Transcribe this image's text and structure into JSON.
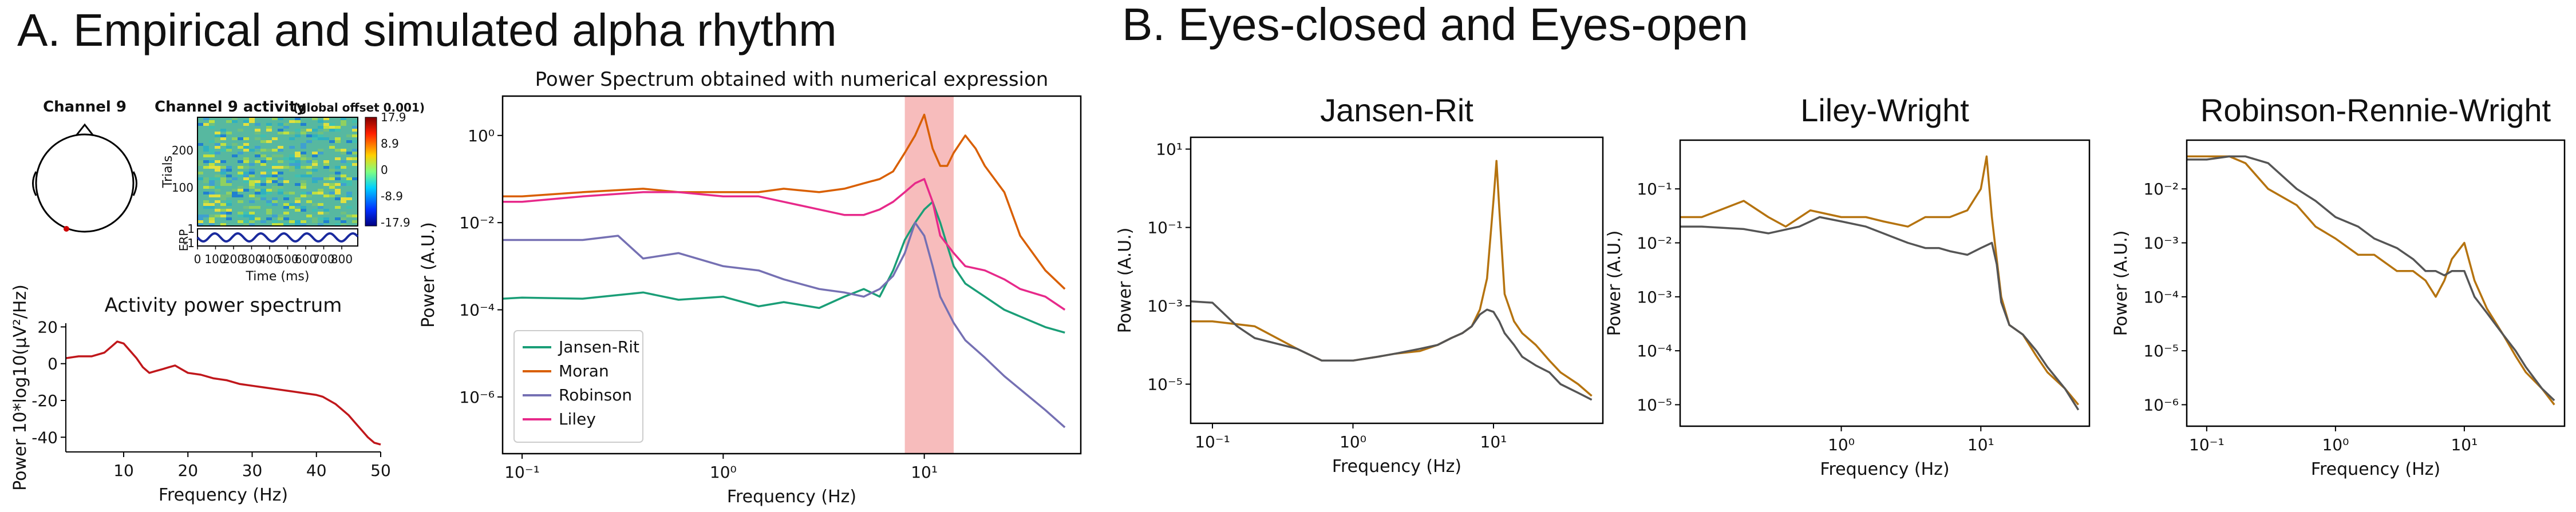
{
  "figure": {
    "panel_a_title": "A. Empirical and simulated alpha rhythm",
    "panel_b_title": "B. Eyes-closed and Eyes-open"
  },
  "eeglab": {
    "channel_title": "Channel 9",
    "activity_title": "Channel 9 activity",
    "activity_subtitle": "(global offset 0.001)",
    "trials_label": "Trials",
    "trial_ticks": [
      "200",
      "100"
    ],
    "erp_label": "ERP",
    "erp_ticks": [
      "1",
      "-1"
    ],
    "time_label": "Time (ms)",
    "time_ticks": [
      "0",
      "100",
      "200",
      "300",
      "400",
      "500",
      "600",
      "700",
      "800"
    ],
    "colorbar_ticks": [
      "17.9",
      "8.9",
      "0",
      "-8.9",
      "-17.9"
    ],
    "colors": {
      "head": "#000000",
      "electrode": "#cc0000",
      "erp_line": "#1a2a9e"
    }
  },
  "chart_data": [
    {
      "id": "activity-power-spectrum",
      "type": "line",
      "title": "Activity power spectrum",
      "xlabel": "Frequency (Hz)",
      "ylabel": "Power 10*log10(μV²/Hz)",
      "xlim": [
        1,
        50
      ],
      "ylim": [
        -48,
        22
      ],
      "xticks": [
        "10",
        "20",
        "30",
        "40",
        "50"
      ],
      "yticks": [
        "20",
        "0",
        "-20",
        "-40"
      ],
      "grid": false,
      "series": [
        {
          "color": "#c0171b",
          "x": [
            1,
            3,
            5,
            7,
            8,
            9,
            10,
            11,
            12,
            13,
            14,
            15,
            16,
            17,
            18,
            19,
            20,
            22,
            24,
            26,
            28,
            30,
            32,
            34,
            36,
            38,
            40,
            41,
            42,
            43,
            44,
            45,
            46,
            47,
            48,
            49,
            50
          ],
          "y": [
            3,
            4,
            4,
            6,
            9,
            12,
            11,
            7,
            3,
            -2,
            -5,
            -4,
            -3,
            -2,
            -1,
            -3,
            -5,
            -6,
            -8,
            -9,
            -11,
            -12,
            -13,
            -14,
            -15,
            -16,
            -17,
            -18,
            -20,
            -22,
            -25,
            -28,
            -32,
            -36,
            -40,
            -43,
            -44
          ]
        }
      ]
    },
    {
      "id": "power-spectrum-numerical",
      "type": "line",
      "title": "Power Spectrum obtained with numerical expression",
      "xlabel": "Frequency (Hz)",
      "ylabel": "Power (A.U.)",
      "xscale": "log",
      "yscale": "log",
      "xlim": [
        0.08,
        60
      ],
      "ylim": [
        5e-08,
        8
      ],
      "xticks": [
        "10⁻¹",
        "10⁰",
        "10¹"
      ],
      "yticks": [
        "10⁰",
        "10⁻²",
        "10⁻⁴",
        "10⁻⁶"
      ],
      "highlight_band": {
        "x": [
          8,
          14
        ],
        "color": "#f4a5a5"
      },
      "legend_position": "lower-left",
      "series": [
        {
          "name": "Jansen-Rit",
          "color": "#1a9e77",
          "x": [
            0.08,
            0.1,
            0.2,
            0.4,
            0.6,
            1,
            1.5,
            2,
            3,
            4,
            5,
            6,
            7,
            8,
            9,
            10,
            11,
            12,
            13,
            14,
            16,
            20,
            25,
            30,
            40,
            50
          ],
          "y": [
            0.00018,
            0.00019,
            0.00018,
            0.00025,
            0.00017,
            0.0002,
            0.00012,
            0.00015,
            0.00011,
            0.0002,
            0.0003,
            0.0002,
            0.0008,
            0.004,
            0.01,
            0.02,
            0.03,
            0.01,
            0.003,
            0.001,
            0.0004,
            0.0002,
            0.0001,
            7e-05,
            4e-05,
            3e-05
          ]
        },
        {
          "name": "Moran",
          "color": "#d95f02",
          "x": [
            0.08,
            0.1,
            0.2,
            0.4,
            0.6,
            1,
            1.5,
            2,
            3,
            4,
            5,
            6,
            7,
            8,
            9,
            10,
            11,
            12,
            13,
            14,
            16,
            18,
            20,
            25,
            30,
            40,
            50
          ],
          "y": [
            0.04,
            0.04,
            0.05,
            0.06,
            0.05,
            0.05,
            0.05,
            0.06,
            0.05,
            0.06,
            0.08,
            0.1,
            0.15,
            0.4,
            1,
            3,
            0.5,
            0.2,
            0.2,
            0.4,
            1,
            0.5,
            0.2,
            0.05,
            0.005,
            0.0008,
            0.0003
          ]
        },
        {
          "name": "Robinson",
          "color": "#7570b3",
          "x": [
            0.08,
            0.1,
            0.2,
            0.3,
            0.4,
            0.6,
            1,
            1.5,
            2,
            3,
            4,
            5,
            6,
            7,
            8,
            9,
            10,
            11,
            12,
            14,
            16,
            20,
            25,
            30,
            40,
            50
          ],
          "y": [
            0.004,
            0.004,
            0.004,
            0.005,
            0.0015,
            0.002,
            0.001,
            0.0008,
            0.0005,
            0.0003,
            0.00025,
            0.0002,
            0.0003,
            0.0006,
            0.002,
            0.01,
            0.005,
            0.001,
            0.0002,
            5e-05,
            2e-05,
            8e-06,
            3e-06,
            1.5e-06,
            5e-07,
            2e-07
          ]
        },
        {
          "name": "Liley",
          "color": "#e7298a",
          "x": [
            0.08,
            0.1,
            0.2,
            0.4,
            0.6,
            1,
            1.5,
            2,
            3,
            4,
            5,
            6,
            7,
            8,
            9,
            10,
            11,
            12,
            14,
            16,
            20,
            25,
            30,
            40,
            50
          ],
          "y": [
            0.03,
            0.03,
            0.04,
            0.05,
            0.05,
            0.04,
            0.04,
            0.03,
            0.02,
            0.015,
            0.015,
            0.02,
            0.03,
            0.05,
            0.08,
            0.1,
            0.03,
            0.005,
            0.002,
            0.001,
            0.0008,
            0.0005,
            0.0003,
            0.0002,
            0.0001
          ]
        }
      ]
    },
    {
      "id": "jansen-rit",
      "type": "line",
      "title": "Jansen-Rit",
      "xlabel": "Frequency (Hz)",
      "ylabel": "Power (A.U.)",
      "xscale": "log",
      "yscale": "log",
      "xlim": [
        0.07,
        60
      ],
      "ylim": [
        1e-06,
        20
      ],
      "xticks": [
        "10⁻¹",
        "10⁰",
        "10¹"
      ],
      "yticks": [
        "10¹",
        "10⁻¹",
        "10⁻³",
        "10⁻⁵"
      ],
      "series": [
        {
          "color": "#b5730f",
          "x": [
            0.07,
            0.1,
            0.2,
            0.4,
            0.6,
            1,
            1.5,
            2,
            3,
            4,
            5,
            6,
            7,
            8,
            9,
            10,
            10.5,
            11,
            12,
            14,
            16,
            20,
            25,
            30,
            40,
            50
          ],
          "y": [
            0.0004,
            0.0004,
            0.0003,
            8e-05,
            4e-05,
            4e-05,
            5e-05,
            6e-05,
            7e-05,
            0.0001,
            0.00015,
            0.0002,
            0.0003,
            0.0008,
            0.005,
            0.5,
            5,
            0.3,
            0.002,
            0.0004,
            0.0002,
            0.0001,
            4e-05,
            2e-05,
            1e-05,
            5e-06
          ]
        },
        {
          "color": "#555555",
          "x": [
            0.07,
            0.1,
            0.15,
            0.2,
            0.4,
            0.6,
            1,
            1.5,
            2,
            3,
            4,
            5,
            6,
            7,
            8,
            9,
            10,
            11,
            12,
            14,
            16,
            20,
            25,
            30,
            40,
            50
          ],
          "y": [
            0.0013,
            0.0012,
            0.0003,
            0.00015,
            8e-05,
            4e-05,
            4e-05,
            5e-05,
            6e-05,
            8e-05,
            0.0001,
            0.00015,
            0.0002,
            0.0003,
            0.0006,
            0.0008,
            0.0007,
            0.0004,
            0.0002,
            0.0001,
            5e-05,
            3e-05,
            2e-05,
            1e-05,
            6e-06,
            4e-06
          ]
        }
      ]
    },
    {
      "id": "liley-wright",
      "type": "line",
      "title": "Liley-Wright",
      "xlabel": "Frequency (Hz)",
      "ylabel": "Power (A.U.)",
      "xscale": "log",
      "yscale": "log",
      "xlim": [
        0.07,
        60
      ],
      "ylim": [
        4e-06,
        0.8
      ],
      "xticks": [
        "10⁰",
        "10¹"
      ],
      "yticks": [
        "10⁻¹",
        "10⁻²",
        "10⁻³",
        "10⁻⁴",
        "10⁻⁵"
      ],
      "series": [
        {
          "color": "#b5730f",
          "x": [
            0.07,
            0.1,
            0.2,
            0.3,
            0.4,
            0.6,
            1,
            1.5,
            2,
            3,
            4,
            5,
            6,
            8,
            10,
            11,
            12,
            13,
            14,
            16,
            20,
            25,
            30,
            40,
            50
          ],
          "y": [
            0.03,
            0.03,
            0.06,
            0.03,
            0.02,
            0.04,
            0.03,
            0.03,
            0.025,
            0.02,
            0.03,
            0.03,
            0.03,
            0.04,
            0.1,
            0.4,
            0.03,
            0.005,
            0.001,
            0.0003,
            0.0002,
            8e-05,
            4e-05,
            2e-05,
            1e-05
          ]
        },
        {
          "color": "#555555",
          "x": [
            0.07,
            0.1,
            0.2,
            0.3,
            0.5,
            0.7,
            1,
            1.5,
            2,
            3,
            4,
            5,
            6,
            8,
            10,
            12,
            13,
            14,
            16,
            20,
            25,
            30,
            40,
            50
          ],
          "y": [
            0.02,
            0.02,
            0.018,
            0.015,
            0.02,
            0.03,
            0.025,
            0.02,
            0.015,
            0.01,
            0.008,
            0.008,
            0.007,
            0.006,
            0.008,
            0.01,
            0.004,
            0.0008,
            0.0003,
            0.0002,
            0.0001,
            5e-05,
            2e-05,
            8e-06
          ]
        }
      ]
    },
    {
      "id": "robinson-rennie-wright",
      "type": "line",
      "title": "Robinson-Rennie-Wright",
      "xlabel": "Frequency (Hz)",
      "ylabel": "Power (A.U.)",
      "xscale": "log",
      "yscale": "log",
      "xlim": [
        0.07,
        60
      ],
      "ylim": [
        4e-07,
        0.08
      ],
      "xticks": [
        "10⁻¹",
        "10⁰",
        "10¹"
      ],
      "yticks": [
        "10⁻²",
        "10⁻³",
        "10⁻⁴",
        "10⁻⁵",
        "10⁻⁶"
      ],
      "series": [
        {
          "color": "#b5730f",
          "x": [
            0.07,
            0.1,
            0.15,
            0.2,
            0.3,
            0.5,
            0.7,
            1,
            1.5,
            2,
            3,
            4,
            5,
            6,
            7,
            8,
            10,
            12,
            15,
            20,
            25,
            30,
            40,
            50
          ],
          "y": [
            0.04,
            0.04,
            0.04,
            0.03,
            0.01,
            0.005,
            0.002,
            0.0012,
            0.0006,
            0.0006,
            0.0003,
            0.0003,
            0.0002,
            0.0001,
            0.0002,
            0.0005,
            0.001,
            0.0002,
            6e-05,
            2e-05,
            8e-06,
            4e-06,
            2e-06,
            1e-06
          ]
        },
        {
          "color": "#555555",
          "x": [
            0.07,
            0.1,
            0.15,
            0.2,
            0.3,
            0.5,
            0.7,
            1,
            1.5,
            2,
            3,
            4,
            5,
            6,
            7,
            8,
            10,
            12,
            15,
            20,
            25,
            30,
            40,
            50
          ],
          "y": [
            0.035,
            0.035,
            0.04,
            0.04,
            0.03,
            0.01,
            0.006,
            0.003,
            0.002,
            0.0012,
            0.0008,
            0.0005,
            0.0003,
            0.0003,
            0.00025,
            0.0003,
            0.0003,
            0.0001,
            5e-05,
            2e-05,
            1e-05,
            5e-06,
            2e-06,
            1.2e-06
          ]
        }
      ]
    }
  ]
}
